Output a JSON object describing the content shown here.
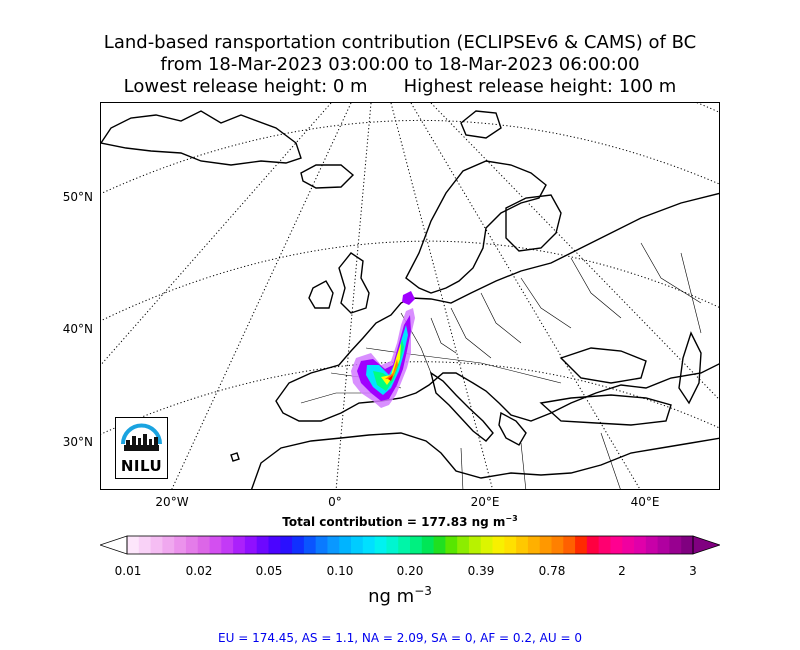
{
  "header": {
    "title_line1": "Land-based ransportation contribution (ECLIPSEv6 & CAMS) of BC",
    "title_line2": "from 18-Mar-2023 03:00:00 to 18-Mar-2023 06:00:00",
    "lowest_release": "Lowest release height: 0 m",
    "highest_release": "Highest release height: 100 m"
  },
  "map": {
    "lat_labels": [
      "50°N",
      "40°N",
      "30°N"
    ],
    "lon_labels": [
      "20°W",
      "0°",
      "20°E",
      "40°E"
    ],
    "plume_colors": [
      "#d27bff",
      "#a000ff",
      "#00e5ff",
      "#00ff80",
      "#ffff00",
      "#ff7f00",
      "#ff0000"
    ]
  },
  "logo": {
    "text": "NILU"
  },
  "total": {
    "prefix": "Total contribution = 177.83 ng m",
    "exponent": "−3"
  },
  "colorbar": {
    "ticks": [
      "0.01",
      "0.02",
      "0.05",
      "0.10",
      "0.20",
      "0.39",
      "0.78",
      "2",
      "3"
    ],
    "unit_base": "ng m",
    "unit_exponent": "−3",
    "colors": [
      "#fde6fb",
      "#f9d2f7",
      "#f5bdf3",
      "#f0a8ef",
      "#eb92ec",
      "#e47ce9",
      "#dc66e7",
      "#d34ff0",
      "#c33af6",
      "#ab21fb",
      "#9010ff",
      "#6d08ff",
      "#4b04ff",
      "#2a10ff",
      "#1030ff",
      "#0a55ff",
      "#0a7aff",
      "#0a98ff",
      "#00b4ff",
      "#00ccff",
      "#00e0ff",
      "#00f2f0",
      "#00f5d0",
      "#00f5a8",
      "#00f080",
      "#00e656",
      "#20e020",
      "#58e600",
      "#8ced00",
      "#b8f200",
      "#dcf500",
      "#f8f000",
      "#ffe000",
      "#ffc800",
      "#ffb000",
      "#ff9800",
      "#ff8000",
      "#ff6000",
      "#ff2a00",
      "#ff0040",
      "#ff0070",
      "#ff0090",
      "#f000a0",
      "#e000aa",
      "#c800a8",
      "#b000a0",
      "#980090",
      "#800080"
    ]
  },
  "regions": "EU = 174.45,  AS = 1.1,  NA = 2.09,  SA = 0,  AF = 0.2,  AU = 0"
}
